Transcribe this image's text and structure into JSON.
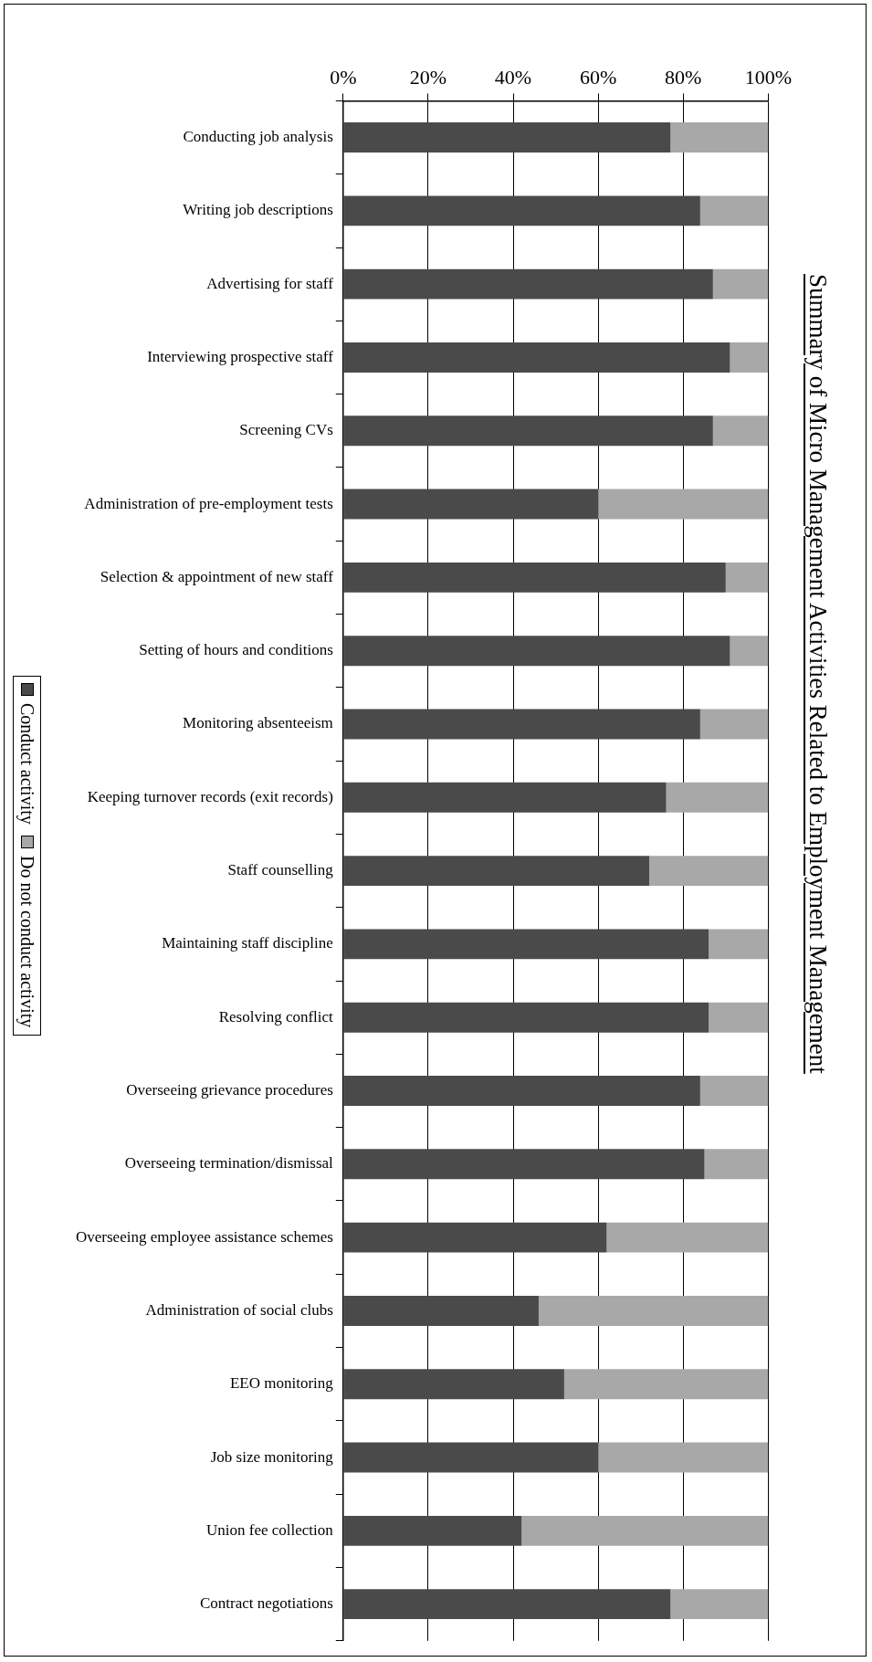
{
  "chart_data": {
    "type": "bar",
    "orientation": "horizontal",
    "stacked": true,
    "title": "Summary of Micro Management Activities Related to Employment Management",
    "categories": [
      "Conducting job analysis",
      "Writing job descriptions",
      "Advertising for staff",
      "Interviewing prospective staff",
      "Screening CVs",
      "Administration of pre-employment tests",
      "Selection & appointment of new staff",
      "Setting of hours and conditions",
      "Monitoring absenteeism",
      "Keeping turnover records (exit records)",
      "Staff counselling",
      "Maintaining staff discipline",
      "Resolving conflict",
      "Overseeing grievance procedures",
      "Overseeing termination/dismissal",
      "Overseeing employee assistance schemes",
      "Administration of social clubs",
      "EEO monitoring",
      "Job size monitoring",
      "Union fee collection",
      "Contract negotiations"
    ],
    "series": [
      {
        "name": "Conduct activity",
        "color": "#4a4a4a",
        "values": [
          77,
          84,
          87,
          91,
          87,
          60,
          90,
          91,
          84,
          76,
          72,
          86,
          86,
          84,
          85,
          62,
          46,
          52,
          60,
          42,
          77
        ]
      },
      {
        "name": "Do not conduct activity",
        "color": "#a8a8a8",
        "values": [
          23,
          16,
          13,
          9,
          13,
          40,
          10,
          9,
          16,
          24,
          28,
          14,
          14,
          16,
          15,
          38,
          54,
          48,
          40,
          58,
          23
        ]
      }
    ],
    "xlim": [
      0,
      100
    ],
    "xticks": [
      {
        "value": 0,
        "label": "0%"
      },
      {
        "value": 20,
        "label": "20%"
      },
      {
        "value": 40,
        "label": "40%"
      },
      {
        "value": 60,
        "label": "60%"
      },
      {
        "value": 80,
        "label": "80%"
      },
      {
        "value": 100,
        "label": "100%"
      }
    ],
    "grid": "x",
    "legend": "left"
  }
}
